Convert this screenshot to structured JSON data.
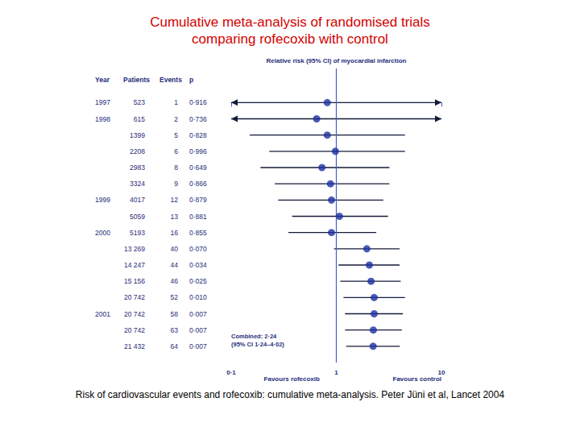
{
  "chart_data": {
    "type": "forest",
    "title": "Cumulative meta-analysis of randomised trials\ncomparing rofecoxib with control",
    "x_label": "Relative risk (95% CI) of myocardial infarction",
    "columns": [
      "Year",
      "Patients",
      "Events",
      "p"
    ],
    "years": [
      1997,
      1998,
      null,
      null,
      null,
      null,
      1999,
      null,
      2000,
      null,
      null,
      null,
      null,
      2001,
      null,
      null
    ],
    "patients": [
      "523",
      "615",
      "1399",
      "2208",
      "2983",
      "3324",
      "4017",
      "5059",
      "5193",
      "13 269",
      "14 247",
      "15 156",
      "20 742",
      "20 742",
      "20 742",
      "21 432"
    ],
    "events": [
      1,
      2,
      5,
      6,
      8,
      9,
      12,
      13,
      16,
      40,
      44,
      46,
      52,
      58,
      63,
      64
    ],
    "p": [
      "0·916",
      "0·736",
      "0·828",
      "0·996",
      "0·649",
      "0·866",
      "0·879",
      "0·881",
      "0·855",
      "0·070",
      "0·034",
      "0·025",
      "0·010",
      "0·007",
      "0·007",
      "0·007"
    ],
    "values": [
      0.82,
      0.65,
      0.82,
      0.98,
      0.73,
      0.88,
      0.9,
      1.07,
      0.9,
      1.95,
      2.06,
      2.14,
      2.29,
      2.29,
      2.25,
      2.24
    ],
    "ci_lower": [
      0.03,
      0.03,
      0.15,
      0.23,
      0.19,
      0.26,
      0.28,
      0.38,
      0.35,
      0.95,
      1.05,
      1.09,
      1.17,
      1.21,
      1.21,
      1.24
    ],
    "ci_upper": [
      25,
      13.9,
      4.5,
      4.5,
      3.2,
      3.2,
      2.8,
      3.1,
      2.4,
      4.0,
      4.0,
      4.1,
      4.5,
      4.3,
      4.2,
      4.02
    ],
    "reference_line": 1,
    "xlim": [
      0.1,
      10
    ],
    "xticks": [
      {
        "value": 0.1,
        "label": "0·1"
      },
      1,
      10
    ],
    "log": "x",
    "grid": false,
    "color": "#1c2fa3",
    "left_label": "Favours rofecoxib",
    "right_label": "Favours control",
    "annotations": [
      "Combined: 2·24",
      "(95% CI 1·24–4·02)"
    ],
    "caption": "Risk of cardiovascular events and rofecoxib: cumulative meta-analysis. Peter Jüni et al, Lancet 2004"
  }
}
